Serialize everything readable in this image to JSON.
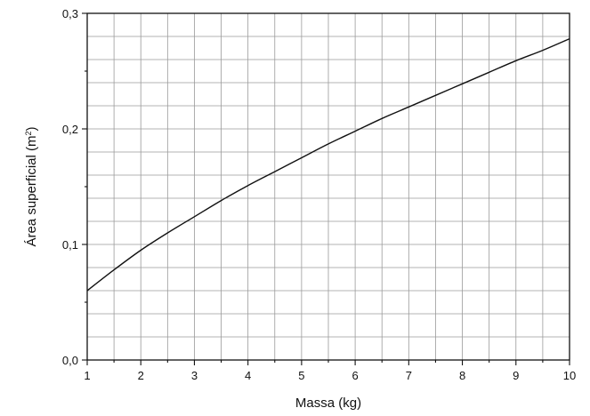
{
  "chart_data": {
    "type": "line",
    "xlabel": "Massa (kg)",
    "ylabel_main": "Área superficial (m",
    "ylabel_sup": "2",
    "ylabel_close": ")",
    "xlim": [
      1,
      10
    ],
    "ylim": [
      0,
      0.3
    ],
    "xticks": [
      1,
      2,
      3,
      4,
      5,
      6,
      7,
      8,
      9,
      10
    ],
    "xtick_labels": [
      "1",
      "2",
      "3",
      "4",
      "5",
      "6",
      "7",
      "8",
      "9",
      "10"
    ],
    "yticks": [
      0,
      0.1,
      0.2,
      0.3
    ],
    "ytick_labels": [
      "0,0",
      "0,1",
      "0,2",
      "0,3"
    ],
    "x_minor_step": 0.5,
    "y_minor_step": 0.02,
    "grid": true,
    "series": [
      {
        "x": [
          1,
          1.5,
          2,
          2.5,
          3,
          3.5,
          4,
          4.5,
          5,
          5.5,
          6,
          6.5,
          7,
          7.5,
          8,
          8.5,
          9,
          9.5,
          10
        ],
        "y": [
          0.06,
          0.078,
          0.095,
          0.11,
          0.124,
          0.138,
          0.151,
          0.163,
          0.175,
          0.187,
          0.198,
          0.209,
          0.219,
          0.229,
          0.239,
          0.249,
          0.259,
          0.268,
          0.278
        ]
      }
    ]
  }
}
